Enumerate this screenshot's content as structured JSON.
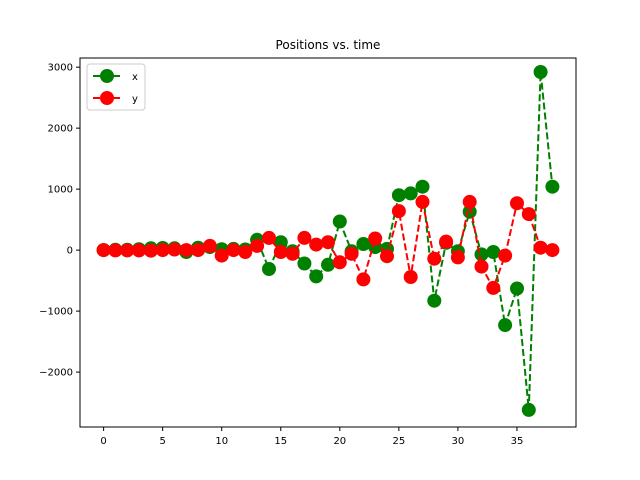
{
  "chart_data": {
    "type": "line",
    "title": "Positions vs. time",
    "xlabel": "",
    "ylabel": "",
    "xlim": [
      -2,
      40
    ],
    "ylim": [
      -2900,
      3150
    ],
    "xticks": [
      0,
      5,
      10,
      15,
      20,
      25,
      30,
      35
    ],
    "yticks": [
      -2000,
      -1000,
      0,
      1000,
      2000,
      3000
    ],
    "xtick_labels": [
      "0",
      "5",
      "10",
      "15",
      "20",
      "25",
      "30",
      "35"
    ],
    "ytick_labels": [
      "−2000",
      "−1000",
      "0",
      "1000",
      "2000",
      "3000"
    ],
    "grid": false,
    "legend_position": "upper-left",
    "series": [
      {
        "name": "x",
        "color": "#008000",
        "line_style": "dashed",
        "marker": "circle",
        "x": [
          0,
          1,
          2,
          3,
          4,
          5,
          6,
          7,
          8,
          9,
          10,
          11,
          12,
          13,
          14,
          15,
          16,
          17,
          18,
          19,
          20,
          21,
          22,
          23,
          24,
          25,
          26,
          27,
          28,
          29,
          30,
          31,
          32,
          33,
          34,
          35,
          36,
          37,
          38
        ],
        "values": [
          0,
          5,
          5,
          15,
          30,
          35,
          30,
          -30,
          40,
          50,
          15,
          20,
          10,
          170,
          -310,
          130,
          -20,
          -220,
          -430,
          -240,
          470,
          -20,
          100,
          50,
          20,
          900,
          930,
          1040,
          -830,
          120,
          -20,
          630,
          -70,
          -30,
          -1230,
          -630,
          -2620,
          2920,
          1040
        ]
      },
      {
        "name": "y",
        "color": "#ff0000",
        "line_style": "dashed",
        "marker": "circle",
        "x": [
          0,
          1,
          2,
          3,
          4,
          5,
          6,
          7,
          8,
          9,
          10,
          11,
          12,
          13,
          14,
          15,
          16,
          17,
          18,
          19,
          20,
          21,
          22,
          23,
          24,
          25,
          26,
          27,
          28,
          29,
          30,
          31,
          32,
          33,
          34,
          35,
          36,
          37,
          38
        ],
        "values": [
          0,
          -5,
          -5,
          -5,
          -10,
          0,
          10,
          0,
          0,
          70,
          -90,
          0,
          -30,
          70,
          200,
          -30,
          -60,
          200,
          90,
          130,
          -200,
          -60,
          -480,
          190,
          -100,
          640,
          -440,
          790,
          -140,
          140,
          -120,
          790,
          -270,
          -620,
          -90,
          770,
          590,
          40,
          0
        ]
      }
    ]
  }
}
